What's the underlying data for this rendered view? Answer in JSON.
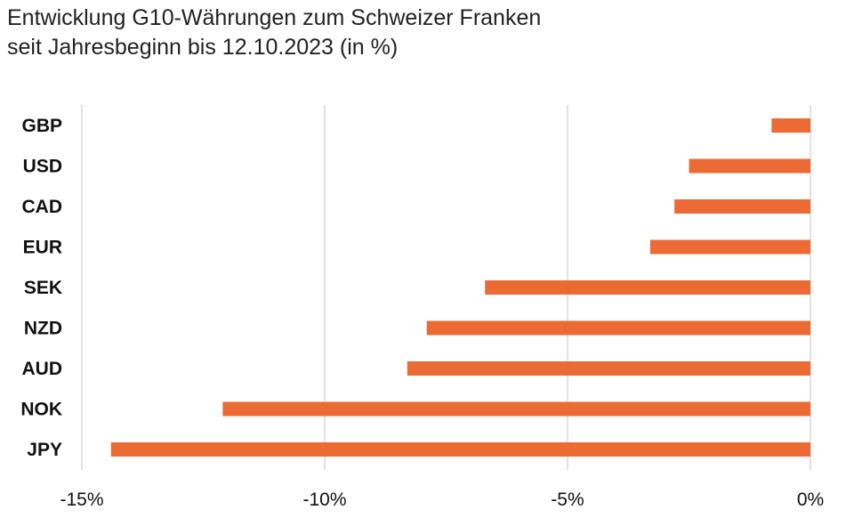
{
  "chart_data": {
    "type": "bar",
    "orientation": "horizontal",
    "title": "Entwicklung G10-Währungen zum Schweizer Franken",
    "subtitle": "seit Jahresbeginn bis 12.10.2023 (in %)",
    "categories": [
      "GBP",
      "USD",
      "CAD",
      "EUR",
      "SEK",
      "NZD",
      "AUD",
      "NOK",
      "JPY"
    ],
    "values": [
      -0.8,
      -2.5,
      -2.8,
      -3.3,
      -6.7,
      -7.9,
      -8.3,
      -12.1,
      -14.4
    ],
    "xlim": [
      -15,
      0
    ],
    "xticks": [
      -15,
      -10,
      -5,
      0
    ],
    "xtick_labels": [
      "-15%",
      "-10%",
      "-5%",
      "0%"
    ],
    "grid": "vertical",
    "bar_color": "#ec6b35",
    "grid_color": "#d9d9d9"
  }
}
